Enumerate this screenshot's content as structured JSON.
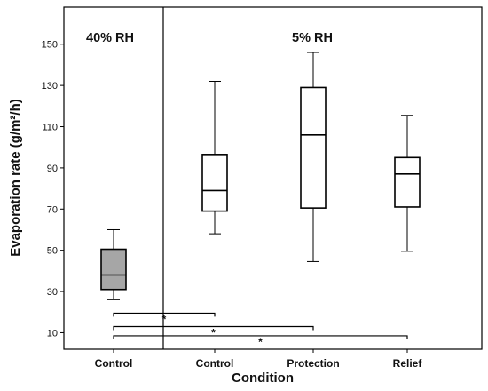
{
  "chart_data": {
    "type": "box",
    "xlabel": "Condition",
    "ylabel": "Evaporation rate (g/m²/h)",
    "ylim": [
      2,
      168
    ],
    "yticks": [
      10,
      30,
      50,
      70,
      90,
      110,
      130,
      150
    ],
    "categories": [
      "Control",
      "Control",
      "Protection",
      "Relief"
    ],
    "panels": [
      {
        "label": "40% RH",
        "categories": [
          0
        ]
      },
      {
        "label": "5% RH",
        "categories": [
          1,
          2,
          3
        ]
      }
    ],
    "boxes": [
      {
        "category": "Control",
        "group": "40% RH",
        "min": 26,
        "q1": 31,
        "median": 38,
        "q3": 50.5,
        "max": 60,
        "fill": "#a6a6a6"
      },
      {
        "category": "Control",
        "group": "5% RH",
        "min": 58,
        "q1": 69,
        "median": 79,
        "q3": 96.5,
        "max": 132,
        "fill": "#ffffff"
      },
      {
        "category": "Protection",
        "group": "5% RH",
        "min": 44.5,
        "q1": 70.5,
        "median": 106,
        "q3": 129,
        "max": 146,
        "fill": "#ffffff"
      },
      {
        "category": "Relief",
        "group": "5% RH",
        "min": 49.5,
        "q1": 71,
        "median": 87,
        "q3": 95,
        "max": 115.5,
        "fill": "#ffffff"
      }
    ],
    "significance": [
      {
        "from": 0,
        "to": 1,
        "y": 19.5,
        "label": "*"
      },
      {
        "from": 0,
        "to": 2,
        "y": 13,
        "label": "*"
      },
      {
        "from": 0,
        "to": 3,
        "y": 8.5,
        "label": "*"
      }
    ],
    "legend": "none",
    "grid": false
  }
}
